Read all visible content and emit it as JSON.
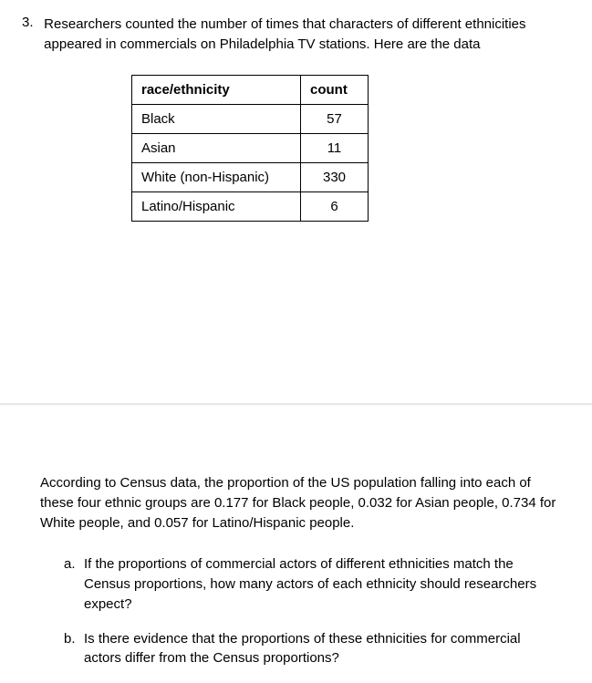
{
  "question": {
    "number": "3.",
    "text": "Researchers counted the number of times that characters of different ethnicities appeared in commercials on Philadelphia TV stations. Here are the data"
  },
  "table": {
    "headers": {
      "category": "race/ethnicity",
      "count": "count"
    },
    "rows": [
      {
        "category": "Black",
        "count": "57"
      },
      {
        "category": "Asian",
        "count": "11"
      },
      {
        "category": "White (non-Hispanic)",
        "count": "330"
      },
      {
        "category": "Latino/Hispanic",
        "count": "6"
      }
    ]
  },
  "census_text": "According to Census data, the proportion of the US population falling into each of these four ethnic groups are 0.177 for Black people, 0.032 for Asian people, 0.734 for White people, and 0.057 for Latino/Hispanic people.",
  "sub_questions": {
    "a": {
      "letter": "a.",
      "text": "If the proportions of commercial actors of different ethnicities match the Census proportions, how many actors of each ethnicity should researchers expect?"
    },
    "b": {
      "letter": "b.",
      "text": "Is there evidence that the proportions of these ethnicities for commercial actors differ from the Census proportions?"
    }
  }
}
